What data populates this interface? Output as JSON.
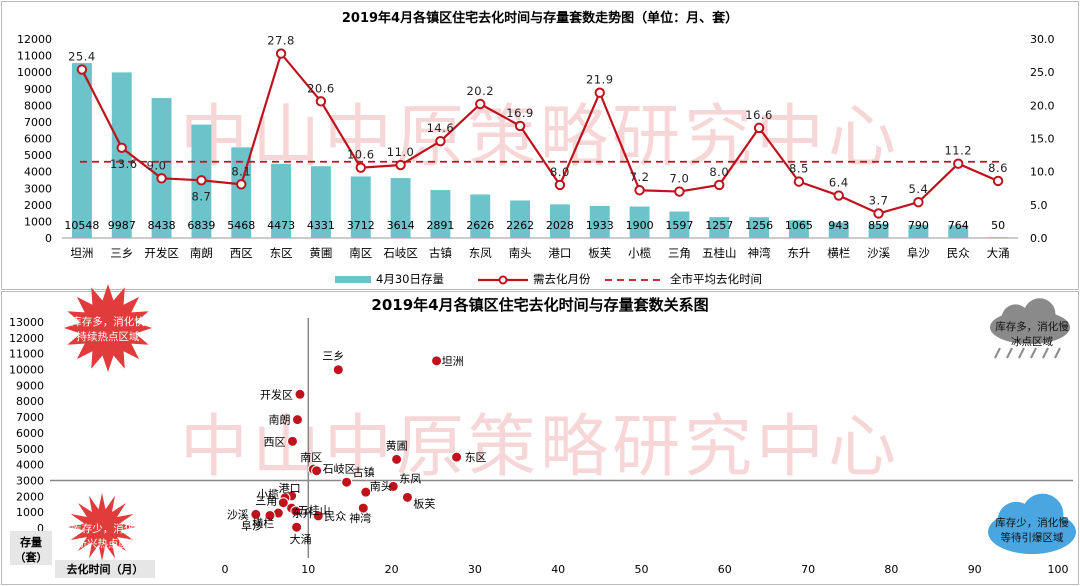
{
  "watermark": "中山中原策略研究中心",
  "colors": {
    "bar": "#6cc3c9",
    "line": "#c0121c",
    "avg": "#c0121c",
    "axis": "#777777",
    "divider": "#888888",
    "red_burst": "#e23b3b",
    "cloud_gray": "#8a8a8a",
    "cloud_blue": "#4aa6e0",
    "watermark": "#f3c9c9"
  },
  "chart_data": [
    {
      "type": "bar+line",
      "title": "2019年4月各镇区住宅去化时间与存量套数走势图（单位：月、套）",
      "categories": [
        "坦洲",
        "三乡",
        "开发区",
        "南朗",
        "西区",
        "东区",
        "黄圃",
        "南区",
        "石岐区",
        "古镇",
        "东凤",
        "南头",
        "港口",
        "板芙",
        "小榄",
        "三角",
        "五桂山",
        "神湾",
        "东升",
        "横栏",
        "沙溪",
        "阜沙",
        "民众",
        "大涌"
      ],
      "series": [
        {
          "name": "4月30日存量",
          "kind": "bar",
          "axis": "left",
          "values": [
            10548,
            9987,
            8438,
            6839,
            5468,
            4473,
            4331,
            3712,
            3614,
            2891,
            2626,
            2262,
            2028,
            1933,
            1900,
            1597,
            1257,
            1256,
            1065,
            943,
            859,
            790,
            764,
            50
          ]
        },
        {
          "name": "需去化月份",
          "kind": "line",
          "axis": "right",
          "values": [
            25.4,
            13.6,
            9.0,
            8.7,
            8.1,
            27.8,
            20.6,
            10.6,
            11.0,
            14.6,
            20.2,
            16.9,
            8.0,
            21.9,
            7.2,
            7.0,
            8.0,
            16.6,
            8.5,
            6.4,
            3.7,
            5.4,
            11.2,
            8.6
          ]
        },
        {
          "name": "全市平均去化时间",
          "kind": "hline",
          "axis": "right",
          "value": 11.5
        }
      ],
      "y_left": {
        "min": 0,
        "max": 12000,
        "ticks": [
          "0",
          "1000",
          "2000",
          "3000",
          "4000",
          "5000",
          "6000",
          "7000",
          "8000",
          "9000",
          "10000",
          "11000",
          "12000"
        ]
      },
      "y_right": {
        "min": 0,
        "max": 30,
        "ticks": [
          "0.0",
          "5.0",
          "10.0",
          "15.0",
          "20.0",
          "25.0",
          "30.0"
        ]
      },
      "legend_position": "bottom",
      "legend": [
        "4月30日存量",
        "需去化月份",
        "全市平均去化时间"
      ]
    },
    {
      "type": "scatter",
      "title": "2019年4月各镇区住宅去化时间与存量套数关系图",
      "xlabel": "去化时间（月）",
      "ylabel": "存量（套）",
      "xlim": [
        0,
        100
      ],
      "ylim": [
        0,
        13000
      ],
      "x_ticks": [
        "0",
        "10",
        "20",
        "30",
        "40",
        "50",
        "60",
        "70",
        "80",
        "90",
        "100"
      ],
      "y_ticks": [
        "0",
        "1000",
        "2000",
        "3000",
        "4000",
        "5000",
        "6000",
        "7000",
        "8000",
        "9000",
        "10000",
        "11000",
        "12000",
        "13000"
      ],
      "divider": {
        "x": 10,
        "y": 3000
      },
      "points": [
        {
          "label": "坦洲",
          "x": 25.4,
          "y": 10548
        },
        {
          "label": "三乡",
          "x": 13.6,
          "y": 9987
        },
        {
          "label": "开发区",
          "x": 9.0,
          "y": 8438
        },
        {
          "label": "南朗",
          "x": 8.7,
          "y": 6839
        },
        {
          "label": "西区",
          "x": 8.1,
          "y": 5468
        },
        {
          "label": "东区",
          "x": 27.8,
          "y": 4473
        },
        {
          "label": "黄圃",
          "x": 20.6,
          "y": 4331
        },
        {
          "label": "南区",
          "x": 10.6,
          "y": 3712
        },
        {
          "label": "石岐区",
          "x": 11.0,
          "y": 3614
        },
        {
          "label": "古镇",
          "x": 14.6,
          "y": 2891
        },
        {
          "label": "东凤",
          "x": 20.2,
          "y": 2626
        },
        {
          "label": "南头",
          "x": 16.9,
          "y": 2262
        },
        {
          "label": "港口",
          "x": 8.0,
          "y": 2028
        },
        {
          "label": "板芙",
          "x": 21.9,
          "y": 1933
        },
        {
          "label": "小榄",
          "x": 7.2,
          "y": 1900
        },
        {
          "label": "三角",
          "x": 7.0,
          "y": 1597
        },
        {
          "label": "五桂山",
          "x": 8.0,
          "y": 1257
        },
        {
          "label": "神湾",
          "x": 16.6,
          "y": 1256
        },
        {
          "label": "东升",
          "x": 8.5,
          "y": 1065
        },
        {
          "label": "横栏",
          "x": 6.4,
          "y": 943
        },
        {
          "label": "沙溪",
          "x": 3.7,
          "y": 859
        },
        {
          "label": "阜沙",
          "x": 5.4,
          "y": 790
        },
        {
          "label": "民众",
          "x": 11.2,
          "y": 764
        },
        {
          "label": "大涌",
          "x": 8.6,
          "y": 50
        }
      ],
      "quadrants": {
        "top_left": "库存多，消化快\n持续热点区域",
        "top_right": "库存多，消化慢\n冰点区域",
        "bottom_left": "库存少，消化快\n新兴热点区域",
        "bottom_right": "库存少，消化慢\n等待引爆区域"
      }
    }
  ]
}
